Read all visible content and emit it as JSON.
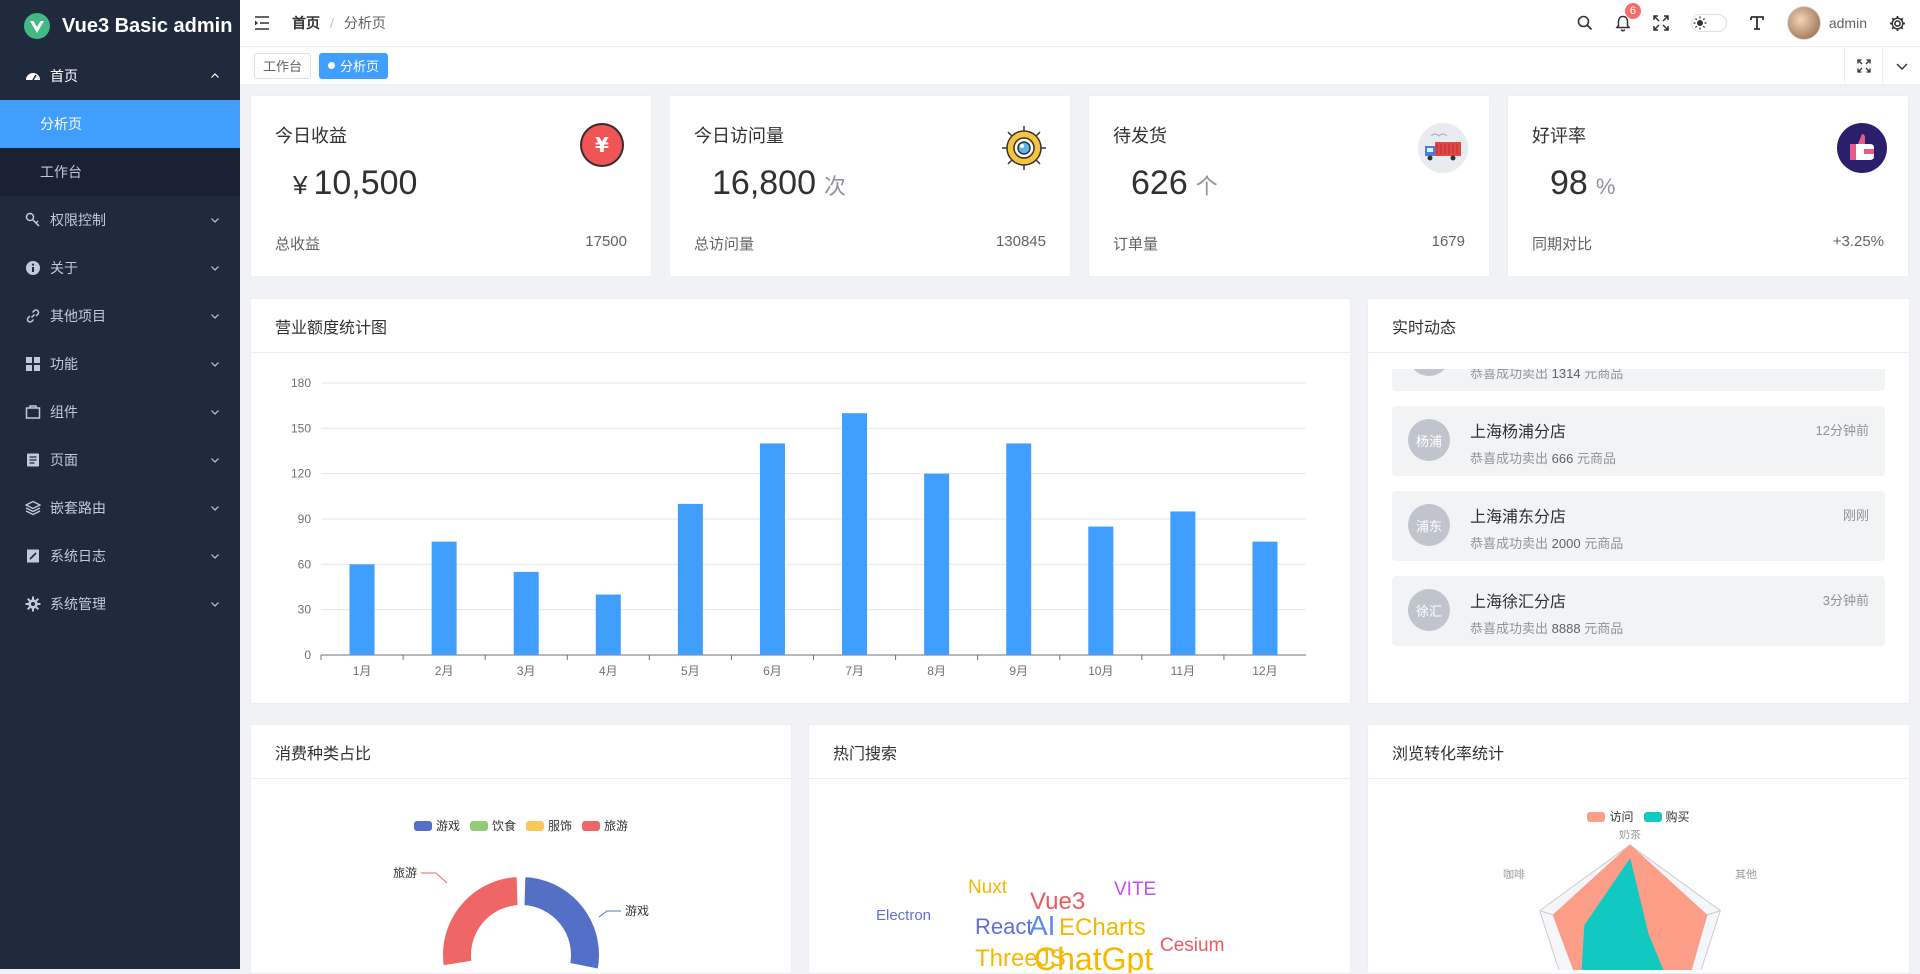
{
  "app": {
    "title": "Vue3 Basic admin"
  },
  "sidebar": {
    "items": [
      {
        "label": "首页",
        "icon": "dashboard-icon",
        "open": true,
        "children": [
          {
            "label": "分析页",
            "active": true
          },
          {
            "label": "工作台",
            "active": false
          }
        ]
      },
      {
        "label": "权限控制",
        "icon": "key-icon"
      },
      {
        "label": "关于",
        "icon": "info-icon"
      },
      {
        "label": "其他项目",
        "icon": "link-icon"
      },
      {
        "label": "功能",
        "icon": "grid-icon"
      },
      {
        "label": "组件",
        "icon": "box-icon"
      },
      {
        "label": "页面",
        "icon": "page-icon"
      },
      {
        "label": "嵌套路由",
        "icon": "layers-icon"
      },
      {
        "label": "系统日志",
        "icon": "log-icon"
      },
      {
        "label": "系统管理",
        "icon": "gear-icon"
      }
    ]
  },
  "header": {
    "breadcrumb": [
      "首页",
      "分析页"
    ],
    "notification_count": "6",
    "username": "admin"
  },
  "tags": [
    {
      "label": "工作台",
      "active": false
    },
    {
      "label": "分析页",
      "active": true
    }
  ],
  "stats": [
    {
      "title": "今日收益",
      "prefix": "¥",
      "value": "10,500",
      "unit": "",
      "foot_label": "总收益",
      "foot_value": "17500",
      "icon": "yuan-coin-icon"
    },
    {
      "title": "今日访问量",
      "prefix": "",
      "value": "16,800",
      "unit": "次",
      "foot_label": "总访问量",
      "foot_value": "130845",
      "icon": "visitor-eye-icon"
    },
    {
      "title": "待发货",
      "prefix": "",
      "value": "626",
      "unit": "个",
      "foot_label": "订单量",
      "foot_value": "1679",
      "icon": "delivery-truck-icon"
    },
    {
      "title": "好评率",
      "prefix": "",
      "value": "98",
      "unit": "%",
      "foot_label": "同期对比",
      "foot_value": "+3.25%",
      "icon": "thumbs-up-icon"
    }
  ],
  "sales_panel": {
    "title": "营业额度统计图"
  },
  "chart_data": [
    {
      "type": "bar",
      "categories": [
        "1月",
        "2月",
        "3月",
        "4月",
        "5月",
        "6月",
        "7月",
        "8月",
        "9月",
        "10月",
        "11月",
        "12月"
      ],
      "values": [
        60,
        75,
        55,
        40,
        100,
        140,
        160,
        120,
        140,
        85,
        95,
        75
      ],
      "yticks": [
        "0",
        "30",
        "60",
        "90",
        "120",
        "150",
        "180"
      ],
      "ylim": [
        0,
        180
      ],
      "grid": true,
      "color": "#409eff"
    },
    {
      "type": "pie",
      "legend": [
        "游戏",
        "饮食",
        "服饰",
        "旅游"
      ],
      "colors": [
        "#5470c6",
        "#91cc75",
        "#fac858",
        "#ee6666"
      ],
      "visible_labels": [
        "旅游",
        "游戏"
      ]
    },
    {
      "type": "radar",
      "legend": [
        "访问",
        "购买"
      ],
      "colors": [
        "#fc9d88",
        "#11c9c0"
      ],
      "indicators": [
        "奶茶",
        "其他",
        "咖啡"
      ]
    }
  ],
  "feed": {
    "title": "实时动态",
    "items": [
      {
        "avatar": "",
        "name": "",
        "time": "",
        "desc_prefix": "恭喜成功卖出",
        "amount": "1314",
        "desc_suffix": "元商品"
      },
      {
        "avatar": "杨浦",
        "name": "上海杨浦分店",
        "time": "12分钟前",
        "desc_prefix": "恭喜成功卖出",
        "amount": "666",
        "desc_suffix": "元商品"
      },
      {
        "avatar": "浦东",
        "name": "上海浦东分店",
        "time": "刚刚",
        "desc_prefix": "恭喜成功卖出",
        "amount": "2000",
        "desc_suffix": "元商品"
      },
      {
        "avatar": "徐汇",
        "name": "上海徐汇分店",
        "time": "3分钟前",
        "desc_prefix": "恭喜成功卖出",
        "amount": "8888",
        "desc_suffix": "元商品"
      }
    ]
  },
  "bottom_panels": {
    "consumption": {
      "title": "消费种类占比"
    },
    "hot_search": {
      "title": "热门搜索",
      "words": [
        {
          "text": "Nuxt",
          "color": "#f5b800"
        },
        {
          "text": "Vue3",
          "color": "#ee5a5a"
        },
        {
          "text": "VITE",
          "color": "#c050f0"
        },
        {
          "text": "Electron",
          "color": "#6070d8"
        },
        {
          "text": "React",
          "color": "#6070d8"
        },
        {
          "text": "AI",
          "color": "#5a8cf0"
        },
        {
          "text": "ECharts",
          "color": "#f5b800"
        },
        {
          "text": "Cesium",
          "color": "#ee5a5a"
        },
        {
          "text": "ThreeJS",
          "color": "#f5b800"
        },
        {
          "text": "ChatGpt",
          "color": "#f5b800"
        }
      ]
    },
    "conversion": {
      "title": "浏览转化率统计"
    }
  },
  "colors": {
    "sidebar_bg": "#1f2a3d",
    "accent": "#409eff",
    "page_bg": "#f0f2f5"
  }
}
